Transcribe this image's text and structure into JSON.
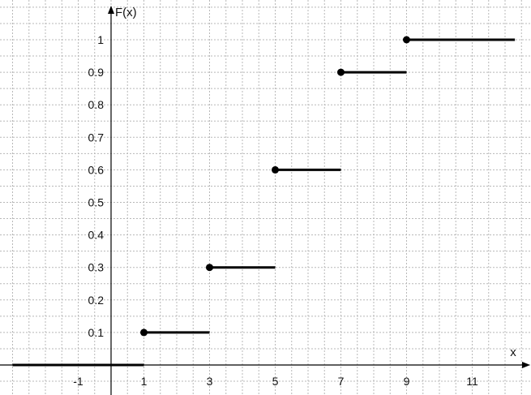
{
  "chart_data": {
    "type": "line",
    "subtype": "step-cdf",
    "xlabel": "x",
    "ylabel": "F(x)",
    "xlim": [
      -3,
      13
    ],
    "ylim": [
      0,
      1
    ],
    "x_tick_labels": [
      -1,
      1,
      3,
      5,
      7,
      9,
      11
    ],
    "y_tick_labels": [
      0.1,
      0.2,
      0.3,
      0.4,
      0.5,
      0.6,
      0.7,
      0.8,
      0.9,
      1
    ],
    "grid": true,
    "segments": [
      {
        "x_start": -3,
        "x_end": 1,
        "y": 0,
        "closed_start": false
      },
      {
        "x_start": 1,
        "x_end": 3,
        "y": 0.1,
        "closed_start": true
      },
      {
        "x_start": 3,
        "x_end": 5,
        "y": 0.3,
        "closed_start": true
      },
      {
        "x_start": 5,
        "x_end": 7,
        "y": 0.6,
        "closed_start": true
      },
      {
        "x_start": 7,
        "x_end": 9,
        "y": 0.9,
        "closed_start": true
      },
      {
        "x_start": 9,
        "x_end": 12.3,
        "y": 1,
        "closed_start": true
      }
    ]
  },
  "colors": {
    "grid": "#b8b8b8",
    "axis": "#000000",
    "series": "#000000"
  }
}
